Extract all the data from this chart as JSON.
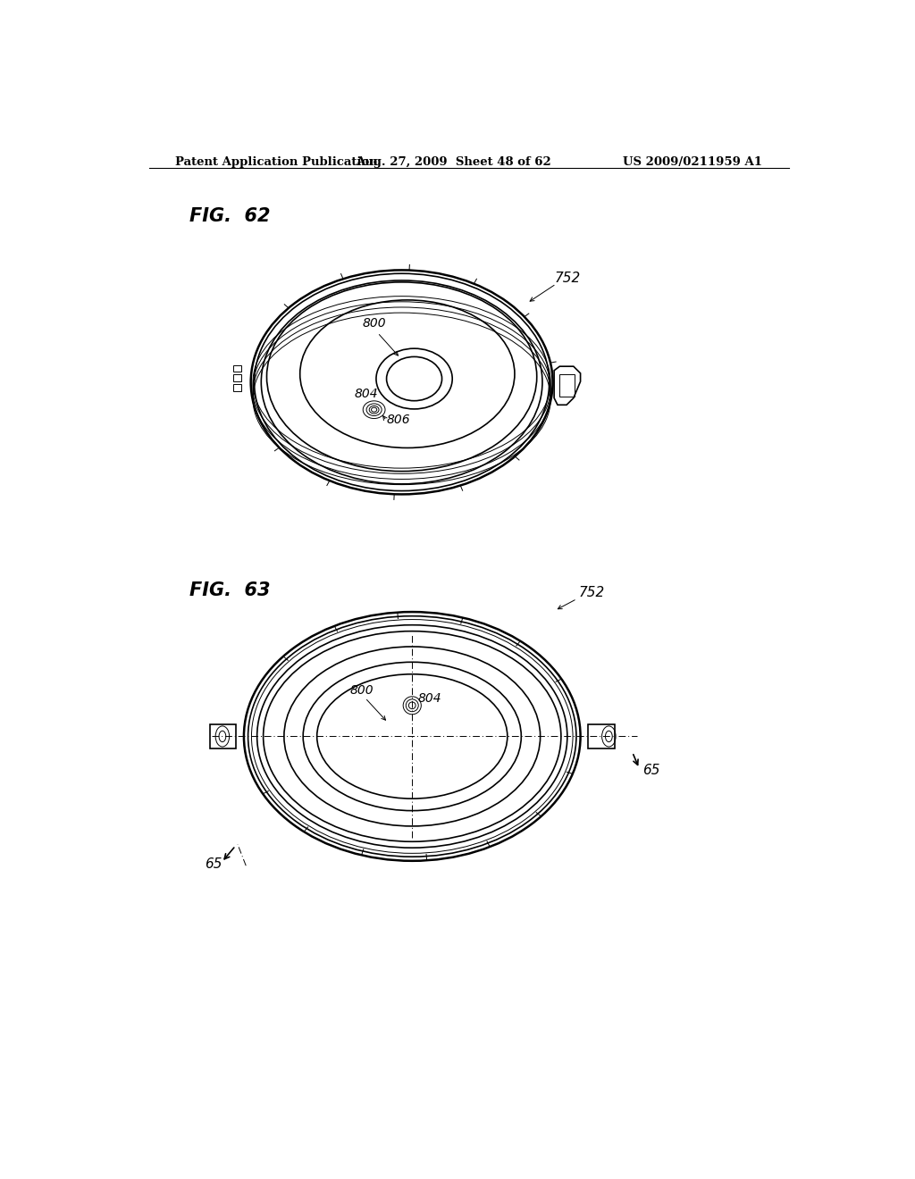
{
  "header_left": "Patent Application Publication",
  "header_center": "Aug. 27, 2009  Sheet 48 of 62",
  "header_right": "US 2009/0211959 A1",
  "fig62_label": "FIG.  62",
  "fig63_label": "FIG.  63",
  "bg_color": "#ffffff",
  "lc": "#000000",
  "header_fontsize": 9.5,
  "fig_label_fontsize": 15
}
